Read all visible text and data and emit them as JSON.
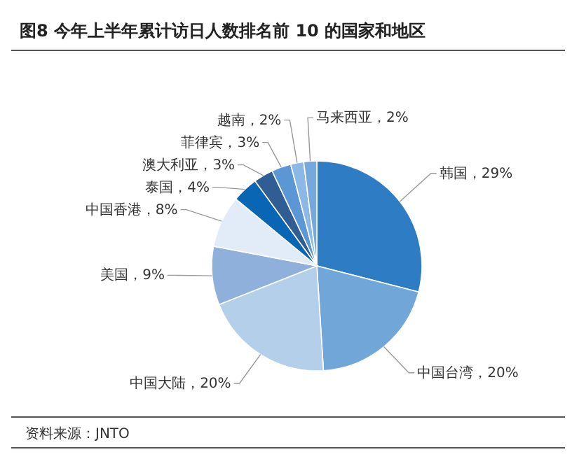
{
  "chart_data": {
    "type": "pie",
    "title": "图8  今年上半年累计访日人数排名前 10 的国家和地区",
    "categories": [
      "韩国",
      "中国台湾",
      "中国大陆",
      "美国",
      "中国香港",
      "泰国",
      "澳大利亚",
      "菲律宾",
      "越南",
      "马来西亚"
    ],
    "values": [
      29,
      20,
      20,
      9,
      8,
      4,
      3,
      3,
      2,
      2
    ],
    "value_labels": [
      "29%",
      "20%",
      "20%",
      "9%",
      "8%",
      "4%",
      "3%",
      "3%",
      "2%",
      "2%"
    ],
    "colors": [
      "#2e7dc4",
      "#70a6d8",
      "#b3cfea",
      "#8fb0da",
      "#e1ecf8",
      "#0966b4",
      "#2f5d94",
      "#5b97d4",
      "#8cb8e6",
      "#77a8dc"
    ],
    "annotations": [
      "资料来源：JNTO"
    ]
  }
}
